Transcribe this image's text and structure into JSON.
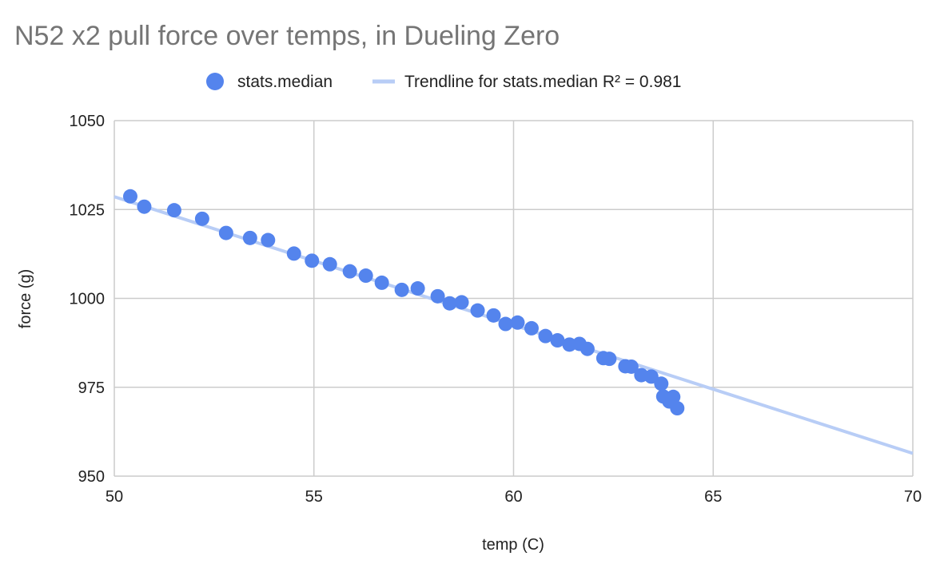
{
  "chart_data": {
    "type": "scatter",
    "title": "N52 x2 pull force over temps, in Dueling Zero",
    "xlabel": "temp (C)",
    "ylabel": "force (g)",
    "xlim": [
      50,
      70
    ],
    "ylim": [
      950,
      1050
    ],
    "xticks": [
      "50",
      "55",
      "60",
      "65",
      "70"
    ],
    "yticks": [
      "950",
      "975",
      "1000",
      "1025",
      "1050"
    ],
    "grid": true,
    "legend": "top",
    "colors": {
      "series": "#5484ed",
      "trend": "#b8cdf6",
      "grid": "#cccccc"
    },
    "series": [
      {
        "name": "stats.median",
        "points": [
          [
            50.4,
            1028.7
          ],
          [
            50.75,
            1025.8
          ],
          [
            51.5,
            1024.8
          ],
          [
            52.2,
            1022.4
          ],
          [
            52.8,
            1018.4
          ],
          [
            53.4,
            1017.0
          ],
          [
            53.85,
            1016.4
          ],
          [
            54.5,
            1012.6
          ],
          [
            54.95,
            1010.6
          ],
          [
            55.4,
            1009.6
          ],
          [
            55.9,
            1007.6
          ],
          [
            56.3,
            1006.4
          ],
          [
            56.7,
            1004.4
          ],
          [
            57.2,
            1002.4
          ],
          [
            57.6,
            1002.8
          ],
          [
            58.1,
            1000.6
          ],
          [
            58.4,
            998.6
          ],
          [
            58.7,
            998.9
          ],
          [
            59.1,
            996.6
          ],
          [
            59.5,
            995.2
          ],
          [
            59.8,
            992.8
          ],
          [
            60.1,
            993.2
          ],
          [
            60.45,
            991.6
          ],
          [
            60.8,
            989.4
          ],
          [
            61.1,
            988.2
          ],
          [
            61.4,
            987.0
          ],
          [
            61.65,
            987.2
          ],
          [
            61.85,
            985.8
          ],
          [
            62.25,
            983.2
          ],
          [
            62.4,
            983.0
          ],
          [
            62.8,
            980.9
          ],
          [
            62.95,
            980.8
          ],
          [
            63.2,
            978.4
          ],
          [
            63.45,
            978.0
          ],
          [
            63.7,
            976.0
          ],
          [
            63.75,
            972.4
          ],
          [
            63.9,
            971.0
          ],
          [
            64.0,
            972.3
          ],
          [
            64.1,
            969.1
          ]
        ]
      }
    ],
    "trendline": {
      "name": "Trendline for stats.median R² = 0.981",
      "x": [
        50,
        70
      ],
      "y": [
        1028.6,
        956.4
      ]
    }
  }
}
